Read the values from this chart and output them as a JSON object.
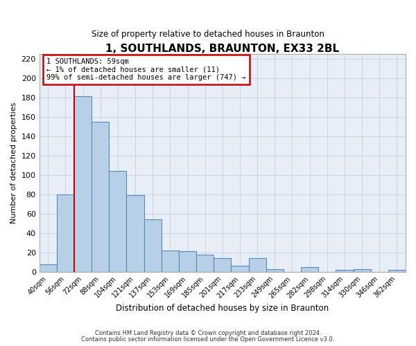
{
  "title": "1, SOUTHLANDS, BRAUNTON, EX33 2BL",
  "subtitle": "Size of property relative to detached houses in Braunton",
  "xlabel": "Distribution of detached houses by size in Braunton",
  "ylabel": "Number of detached properties",
  "bar_labels": [
    "40sqm",
    "56sqm",
    "72sqm",
    "88sqm",
    "104sqm",
    "121sqm",
    "137sqm",
    "153sqm",
    "169sqm",
    "185sqm",
    "201sqm",
    "217sqm",
    "233sqm",
    "249sqm",
    "265sqm",
    "282sqm",
    "298sqm",
    "314sqm",
    "330sqm",
    "346sqm",
    "362sqm"
  ],
  "bar_values": [
    8,
    80,
    181,
    155,
    104,
    79,
    54,
    22,
    21,
    18,
    14,
    6,
    14,
    3,
    0,
    5,
    0,
    2,
    3,
    0,
    2
  ],
  "bar_color": "#b8cfe8",
  "bar_edge_color": "#5588bb",
  "ylim": [
    0,
    225
  ],
  "yticks": [
    0,
    20,
    40,
    60,
    80,
    100,
    120,
    140,
    160,
    180,
    200,
    220
  ],
  "grid_color": "#c8d4e4",
  "bg_color": "#e8eef8",
  "red_line_color": "#cc0000",
  "red_line_x": 1.5,
  "annotation_line1": "1 SOUTHLANDS: 59sqm",
  "annotation_line2": "← 1% of detached houses are smaller (11)",
  "annotation_line3": "99% of semi-detached houses are larger (747) →",
  "ann_box_edge": "#cc0000",
  "footer1": "Contains HM Land Registry data © Crown copyright and database right 2024.",
  "footer2": "Contains public sector information licensed under the Open Government Licence v3.0."
}
